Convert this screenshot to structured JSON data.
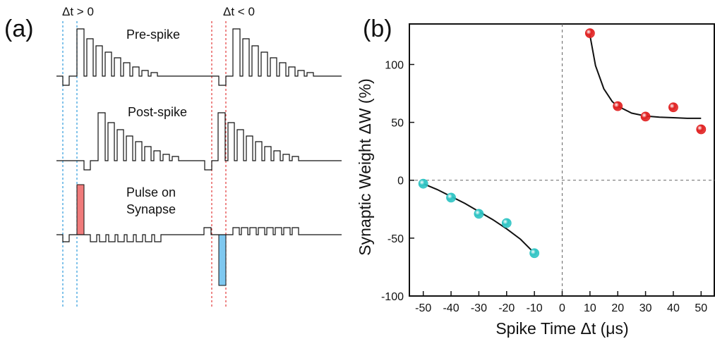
{
  "panel_a": {
    "label": "(a)",
    "dt_pos_label": "Δt > 0",
    "dt_neg_label": "Δt < 0",
    "pre_label": "Pre-spike",
    "post_label": "Post-spike",
    "pulse_label_line1": "Pulse on",
    "pulse_label_line2": "Synapse",
    "colors": {
      "blue_guide": "#2e9bdc",
      "red_guide": "#e23a3a",
      "pos_pulse": "#f07b7b",
      "neg_pulse": "#7ec8f0"
    }
  },
  "panel_b": {
    "label": "(b)"
  },
  "chart_data": {
    "type": "scatter",
    "xlabel": "Spike Time Δt (μs)",
    "ylabel": "Synaptic Weight ΔW (%)",
    "xlim": [
      -55,
      55
    ],
    "ylim": [
      -100,
      135
    ],
    "xticks": [
      -50,
      -40,
      -30,
      -20,
      -10,
      0,
      10,
      20,
      30,
      40,
      50
    ],
    "yticks": [
      -100,
      -50,
      0,
      50,
      100
    ],
    "grid": false,
    "reference_lines": {
      "x": 0,
      "y": 0,
      "style": "dashed"
    },
    "series": [
      {
        "color": "#2ec4c4",
        "x": [
          -50,
          -40,
          -30,
          -20,
          -10
        ],
        "y": [
          -3,
          -15,
          -29,
          -37,
          -63
        ],
        "fit": {
          "x": [
            -50,
            -45,
            -40,
            -35,
            -30,
            -25,
            -20,
            -15,
            -10
          ],
          "y": [
            -3,
            -8,
            -14,
            -20,
            -27,
            -34,
            -42,
            -51,
            -63
          ]
        }
      },
      {
        "color": "#e02020",
        "x": [
          10,
          20,
          30,
          40,
          50
        ],
        "y": [
          127,
          64,
          55,
          63,
          44
        ],
        "fit": {
          "x": [
            10,
            12,
            15,
            18,
            20,
            25,
            30,
            35,
            40,
            45,
            50
          ],
          "y": [
            125,
            99,
            79,
            68,
            64,
            58,
            55.5,
            54.5,
            54,
            53.5,
            53.5
          ]
        }
      }
    ]
  }
}
